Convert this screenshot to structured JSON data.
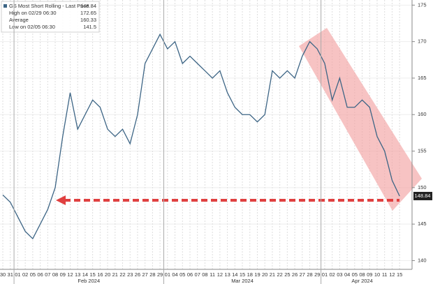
{
  "chart_data": {
    "type": "line",
    "categories": [
      "30",
      "31",
      "01",
      "02",
      "05",
      "06",
      "07",
      "08",
      "09",
      "12",
      "13",
      "14",
      "15",
      "16",
      "20",
      "21",
      "22",
      "23",
      "26",
      "27",
      "28",
      "29",
      "01",
      "04",
      "05",
      "06",
      "07",
      "08",
      "11",
      "12",
      "13",
      "14",
      "15",
      "18",
      "19",
      "20",
      "21",
      "22",
      "25",
      "26",
      "27",
      "28",
      "29",
      "01",
      "02",
      "03",
      "04",
      "05",
      "08",
      "09",
      "10",
      "11",
      "12",
      "15"
    ],
    "months": [
      "Feb 2024",
      "Mar 2024",
      "Apr 2024"
    ],
    "series": [
      {
        "name": "GS Most Short Rolling - Last Price",
        "color": "#3d6585",
        "values": [
          149,
          148,
          146,
          144,
          143,
          145,
          147,
          150,
          157,
          163,
          158,
          160,
          162,
          161,
          158,
          157,
          158,
          156,
          160,
          167,
          169,
          171,
          169,
          170,
          167,
          168,
          167,
          166,
          165,
          166,
          163,
          161,
          160,
          160,
          159,
          160,
          166,
          165,
          166,
          165,
          168,
          170,
          169,
          167,
          162,
          165,
          161,
          161,
          162,
          161,
          157,
          155,
          151,
          148.84
        ]
      }
    ],
    "legend": {
      "high_label": "High on 02/29 06:30",
      "high": 172.65,
      "average_label": "Average",
      "average": 160.33,
      "low_label": "Low on 02/05 06:30",
      "low": 141.5
    },
    "ylim": [
      138.8,
      175.7
    ],
    "yticks": [
      140,
      145,
      150,
      155,
      160,
      165,
      170,
      175
    ],
    "grid": true
  }
}
